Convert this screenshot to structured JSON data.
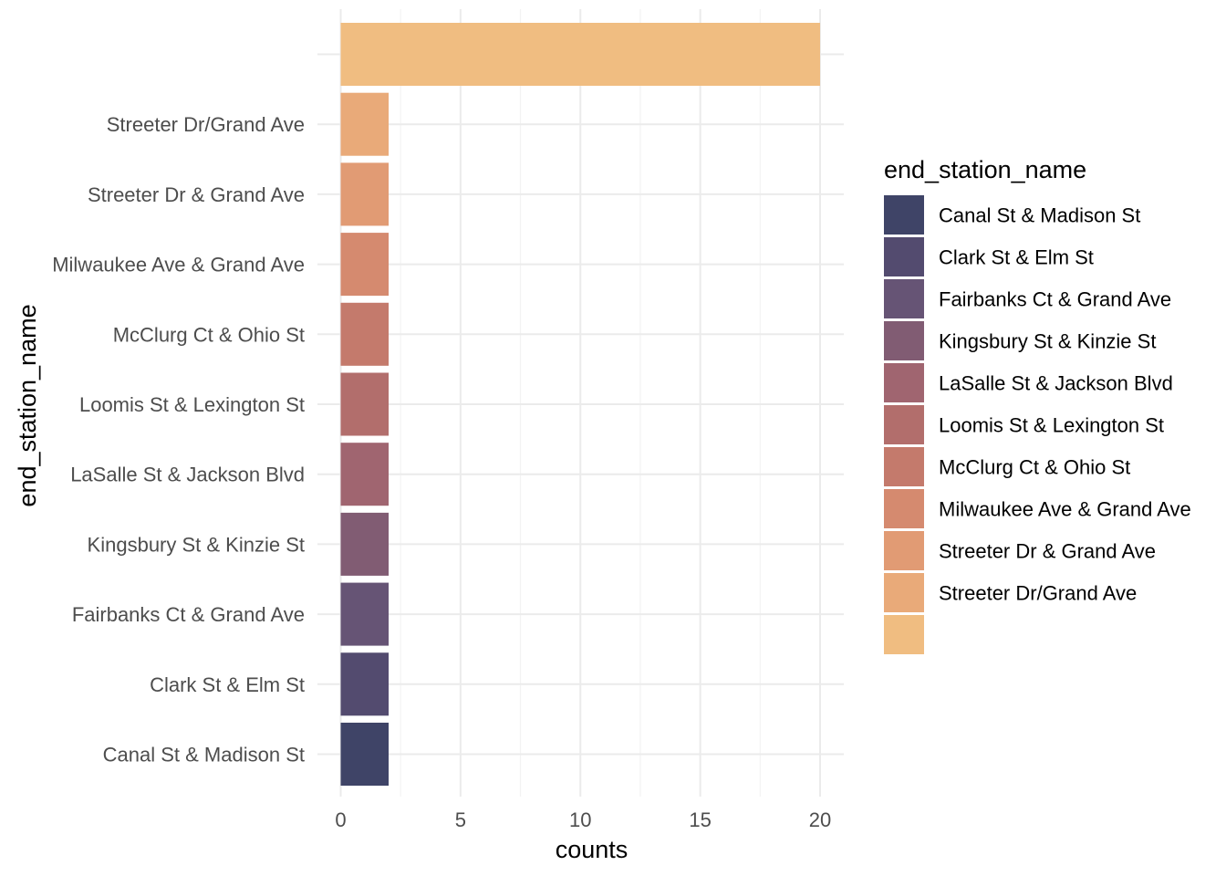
{
  "chart_data": {
    "type": "bar",
    "orientation": "horizontal",
    "xlabel": "counts",
    "ylabel": "end_station_name",
    "xlim": [
      0,
      21
    ],
    "x_ticks": [
      0,
      5,
      10,
      15,
      20
    ],
    "grid": true,
    "categories": [
      "Canal St & Madison St",
      "Clark St & Elm St",
      "Fairbanks Ct & Grand Ave",
      "Kingsbury St & Kinzie St",
      "LaSalle St & Jackson Blvd",
      "Loomis St & Lexington St",
      "McClurg Ct & Ohio St",
      "Milwaukee Ave & Grand Ave",
      "Streeter Dr & Grand Ave",
      "Streeter Dr/Grand Ave",
      ""
    ],
    "values": [
      2,
      2,
      2,
      2,
      2,
      2,
      2,
      2,
      2,
      2,
      20
    ],
    "colors": [
      "#3f4467",
      "#534b6f",
      "#665475",
      "#815c73",
      "#a06570",
      "#b26e6c",
      "#c47a6c",
      "#d58a6f",
      "#e19b74",
      "#e9aa79",
      "#f0bd81"
    ],
    "legend": {
      "title": "end_station_name",
      "position": "right",
      "entries": [
        "Canal St & Madison St",
        "Clark St & Elm St",
        "Fairbanks Ct & Grand Ave",
        "Kingsbury St & Kinzie St",
        "LaSalle St & Jackson Blvd",
        "Loomis St & Lexington St",
        "McClurg Ct & Ohio St",
        "Milwaukee Ave & Grand Ave",
        "Streeter Dr & Grand Ave",
        "Streeter Dr/Grand Ave",
        ""
      ]
    }
  }
}
